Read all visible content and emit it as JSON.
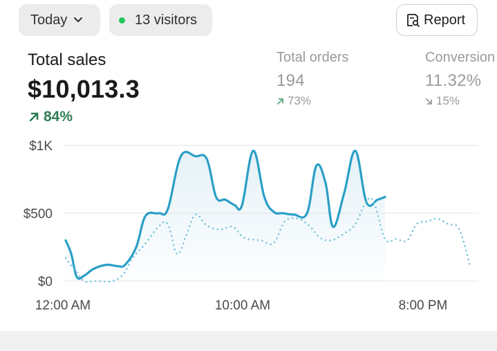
{
  "filters": {
    "date_label": "Today",
    "visitors_label": "13 visitors"
  },
  "report_button": {
    "label": "Report"
  },
  "metrics": {
    "total_sales": {
      "title": "Total sales",
      "value": "$10,013.3",
      "change": "84%"
    },
    "total_orders": {
      "title": "Total orders",
      "value": "194",
      "change": "73%"
    },
    "conversion": {
      "title": "Conversion",
      "value": "11.32%",
      "change": "15%"
    }
  },
  "colors": {
    "accent": "#2a9fc6",
    "positive": "#2f7d55",
    "status_dot": "#22c55e",
    "muted": "#9a9a9a"
  },
  "chart_data": {
    "type": "line",
    "ylim": [
      0,
      1000
    ],
    "y_ticks": [
      "$0",
      "$500",
      "$1K"
    ],
    "x_ticks": [
      "12:00 AM",
      "10:00 AM",
      "8:00 PM"
    ],
    "grid": true,
    "series": [
      {
        "style": "solid",
        "points": [
          [
            0,
            300
          ],
          [
            0.3,
            200
          ],
          [
            0.6,
            30
          ],
          [
            1.0,
            40
          ],
          [
            1.5,
            90
          ],
          [
            2.2,
            120
          ],
          [
            2.8,
            110
          ],
          [
            3.2,
            120
          ],
          [
            3.8,
            250
          ],
          [
            4.3,
            480
          ],
          [
            5.0,
            500
          ],
          [
            5.5,
            530
          ],
          [
            6.2,
            920
          ],
          [
            7.0,
            920
          ],
          [
            7.6,
            900
          ],
          [
            8.1,
            620
          ],
          [
            8.6,
            600
          ],
          [
            9.1,
            560
          ],
          [
            9.5,
            560
          ],
          [
            10.1,
            960
          ],
          [
            10.7,
            620
          ],
          [
            11.2,
            510
          ],
          [
            11.7,
            500
          ],
          [
            12.3,
            490
          ],
          [
            13.0,
            500
          ],
          [
            13.5,
            850
          ],
          [
            14.0,
            720
          ],
          [
            14.4,
            400
          ],
          [
            15.0,
            650
          ],
          [
            15.6,
            960
          ],
          [
            16.2,
            580
          ],
          [
            16.8,
            600
          ],
          [
            17.2,
            620
          ]
        ]
      },
      {
        "style": "dotted",
        "points": [
          [
            0,
            170
          ],
          [
            0.5,
            80
          ],
          [
            1.0,
            0
          ],
          [
            1.6,
            0
          ],
          [
            2.5,
            0
          ],
          [
            3.1,
            50
          ],
          [
            3.6,
            170
          ],
          [
            4.2,
            260
          ],
          [
            5.0,
            400
          ],
          [
            5.5,
            420
          ],
          [
            6.0,
            200
          ],
          [
            6.5,
            340
          ],
          [
            7.0,
            490
          ],
          [
            7.6,
            410
          ],
          [
            8.3,
            380
          ],
          [
            9.0,
            400
          ],
          [
            9.6,
            320
          ],
          [
            10.5,
            300
          ],
          [
            11.2,
            280
          ],
          [
            11.8,
            440
          ],
          [
            12.5,
            460
          ],
          [
            13.1,
            410
          ],
          [
            13.7,
            320
          ],
          [
            14.3,
            300
          ],
          [
            15.0,
            350
          ],
          [
            15.6,
            420
          ],
          [
            16.2,
            590
          ],
          [
            16.6,
            580
          ],
          [
            17.2,
            310
          ],
          [
            17.8,
            310
          ],
          [
            18.4,
            300
          ],
          [
            18.9,
            420
          ],
          [
            19.5,
            440
          ],
          [
            20.0,
            460
          ],
          [
            20.6,
            420
          ],
          [
            21.2,
            380
          ],
          [
            21.8,
            100
          ]
        ]
      }
    ]
  }
}
